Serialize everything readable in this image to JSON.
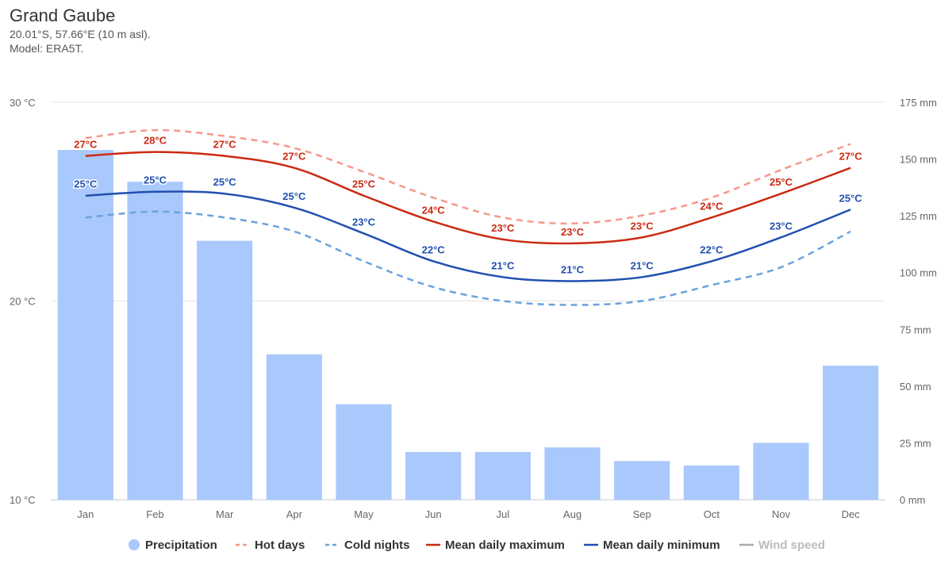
{
  "header": {
    "title": "Grand Gaube",
    "coords": "20.01°S, 57.66°E (10 m asl).",
    "model": "Model: ERA5T."
  },
  "colors": {
    "precip": "#a9c8fb",
    "hot_days": "#f4998a",
    "cold_nights": "#6aa2dd",
    "mean_max": "#cc2a12",
    "mean_min": "#2250b0",
    "wind": "#aaaaaa",
    "grid": "#e6e6e6"
  },
  "chart_data": {
    "type": "bar+line",
    "categories": [
      "Jan",
      "Feb",
      "Mar",
      "Apr",
      "May",
      "Jun",
      "Jul",
      "Aug",
      "Sep",
      "Oct",
      "Nov",
      "Dec"
    ],
    "y_left": {
      "ylim": [
        10,
        30
      ],
      "ticks": [
        "10 °C",
        "20 °C",
        "30 °C"
      ],
      "values": [
        10,
        20,
        30
      ]
    },
    "y_right": {
      "ylim": [
        0,
        175
      ],
      "ticks": [
        "0 mm",
        "25 mm",
        "50 mm",
        "75 mm",
        "100 mm",
        "125 mm",
        "150 mm",
        "175 mm"
      ],
      "values": [
        0,
        25,
        50,
        75,
        100,
        125,
        150,
        175
      ]
    },
    "series": [
      {
        "name": "Precipitation",
        "kind": "bar",
        "axis": "right",
        "values": [
          154,
          140,
          114,
          64,
          42,
          21,
          21,
          23,
          17,
          15,
          25,
          59
        ]
      },
      {
        "name": "Hot days",
        "kind": "dashed-line",
        "axis": "left",
        "values": [
          28.2,
          28.6,
          28.3,
          27.7,
          26.5,
          25.2,
          24.2,
          23.9,
          24.3,
          25.2,
          26.6,
          27.9
        ]
      },
      {
        "name": "Cold nights",
        "kind": "dashed-line",
        "axis": "left",
        "values": [
          24.2,
          24.5,
          24.2,
          23.5,
          22.0,
          20.7,
          20.0,
          19.8,
          20.0,
          20.8,
          21.7,
          23.5
        ]
      },
      {
        "name": "Mean daily maximum",
        "kind": "line",
        "axis": "left",
        "values": [
          27.3,
          27.5,
          27.3,
          26.7,
          25.3,
          24.0,
          23.1,
          22.9,
          23.2,
          24.2,
          25.4,
          26.7
        ],
        "labels": [
          "27°C",
          "28°C",
          "27°C",
          "27°C",
          "25°C",
          "24°C",
          "23°C",
          "23°C",
          "23°C",
          "24°C",
          "25°C",
          "27°C"
        ]
      },
      {
        "name": "Mean daily minimum",
        "kind": "line",
        "axis": "left",
        "values": [
          25.3,
          25.5,
          25.4,
          24.7,
          23.4,
          22.0,
          21.2,
          21.0,
          21.2,
          22.0,
          23.2,
          24.6
        ],
        "labels": [
          "25°C",
          "25°C",
          "25°C",
          "25°C",
          "23°C",
          "22°C",
          "21°C",
          "21°C",
          "21°C",
          "22°C",
          "23°C",
          "25°C"
        ]
      }
    ],
    "legend": [
      {
        "label": "Precipitation",
        "symbol": "dot",
        "active": true
      },
      {
        "label": "Hot days",
        "symbol": "dashed",
        "active": true
      },
      {
        "label": "Cold nights",
        "symbol": "dashed",
        "active": true
      },
      {
        "label": "Mean daily maximum",
        "symbol": "line",
        "active": true
      },
      {
        "label": "Mean daily minimum",
        "symbol": "line",
        "active": true
      },
      {
        "label": "Wind speed",
        "symbol": "line",
        "active": false
      }
    ],
    "legend_position": "bottom-center"
  }
}
